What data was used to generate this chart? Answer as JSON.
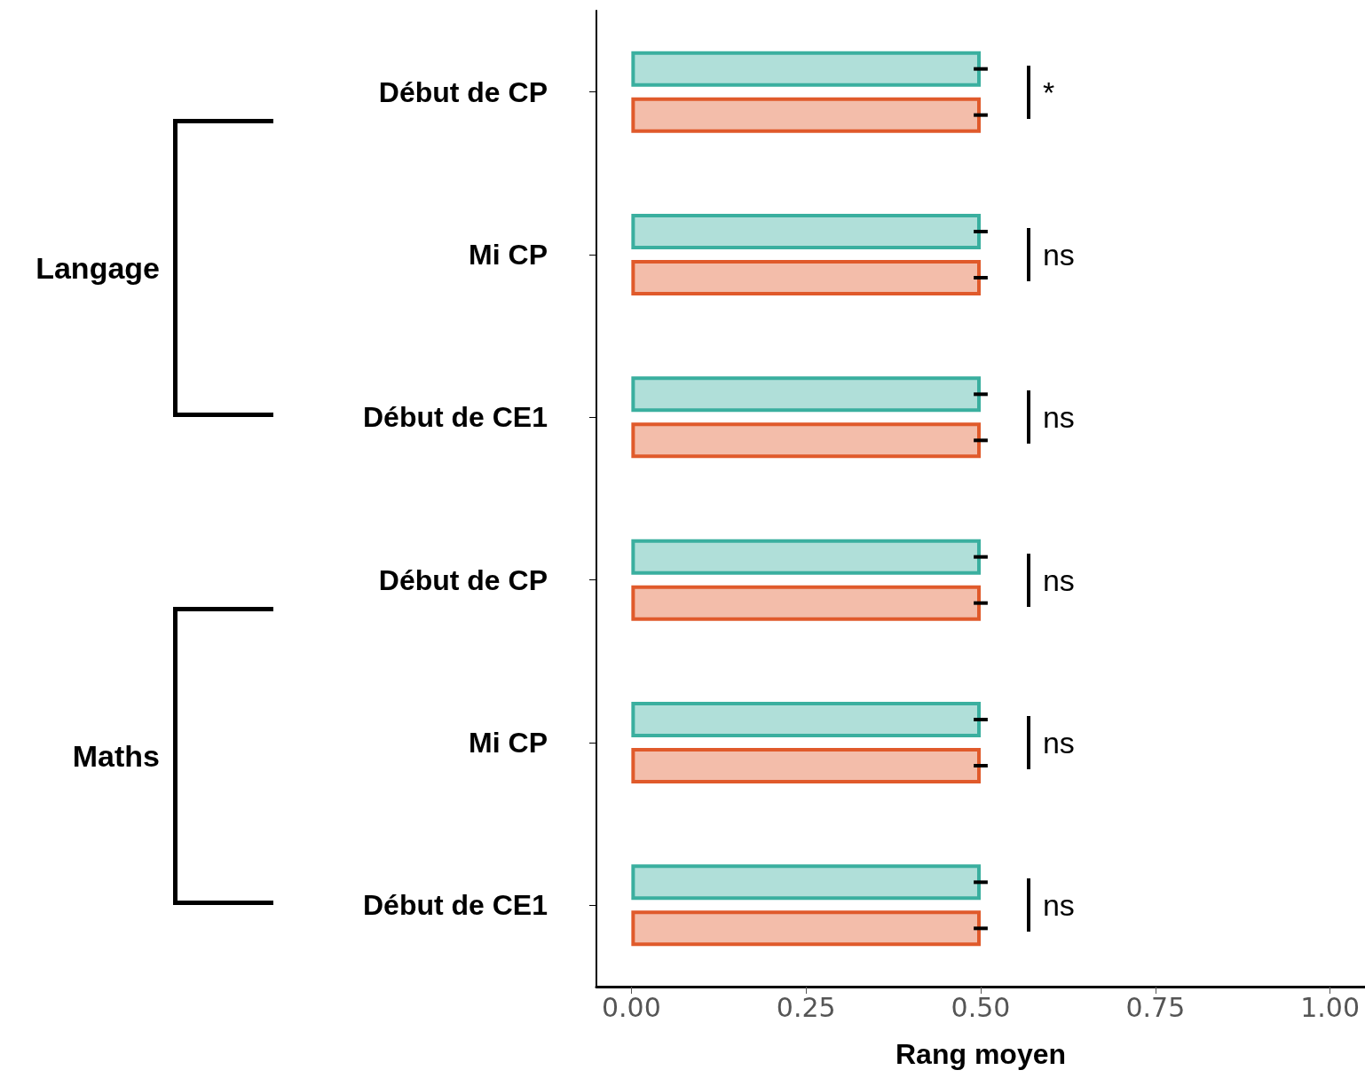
{
  "chart_data": {
    "type": "bar",
    "orientation": "horizontal",
    "xlabel": "Rang moyen",
    "categories": [
      "Début de CP",
      "Mi CP",
      "Début de CE1",
      "Début de CP",
      "Mi CP",
      "Début de CE1"
    ],
    "series": [
      {
        "color": "#3aaf9f",
        "values": [
          0.5,
          0.5,
          0.5,
          0.5,
          0.5,
          0.5
        ],
        "errors": [
          0.01,
          0.01,
          0.01,
          0.01,
          0.01,
          0.01
        ]
      },
      {
        "color": "#e05a2b",
        "values": [
          0.5,
          0.5,
          0.5,
          0.5,
          0.5,
          0.5
        ],
        "errors": [
          0.01,
          0.01,
          0.01,
          0.01,
          0.01,
          0.01
        ]
      }
    ],
    "xlim": [
      -0.05,
      1.05
    ],
    "xticks": [
      {
        "value": 0,
        "label": "0.00"
      },
      {
        "value": 0.25,
        "label": "0.25"
      },
      {
        "value": 0.5,
        "label": "0.50"
      },
      {
        "value": 0.75,
        "label": "0.75"
      },
      {
        "value": 1,
        "label": "1.00"
      }
    ],
    "grid": false,
    "annotations": [
      "Langage",
      "Maths",
      "*",
      "ns",
      "ns",
      "ns",
      "ns",
      "ns"
    ]
  }
}
